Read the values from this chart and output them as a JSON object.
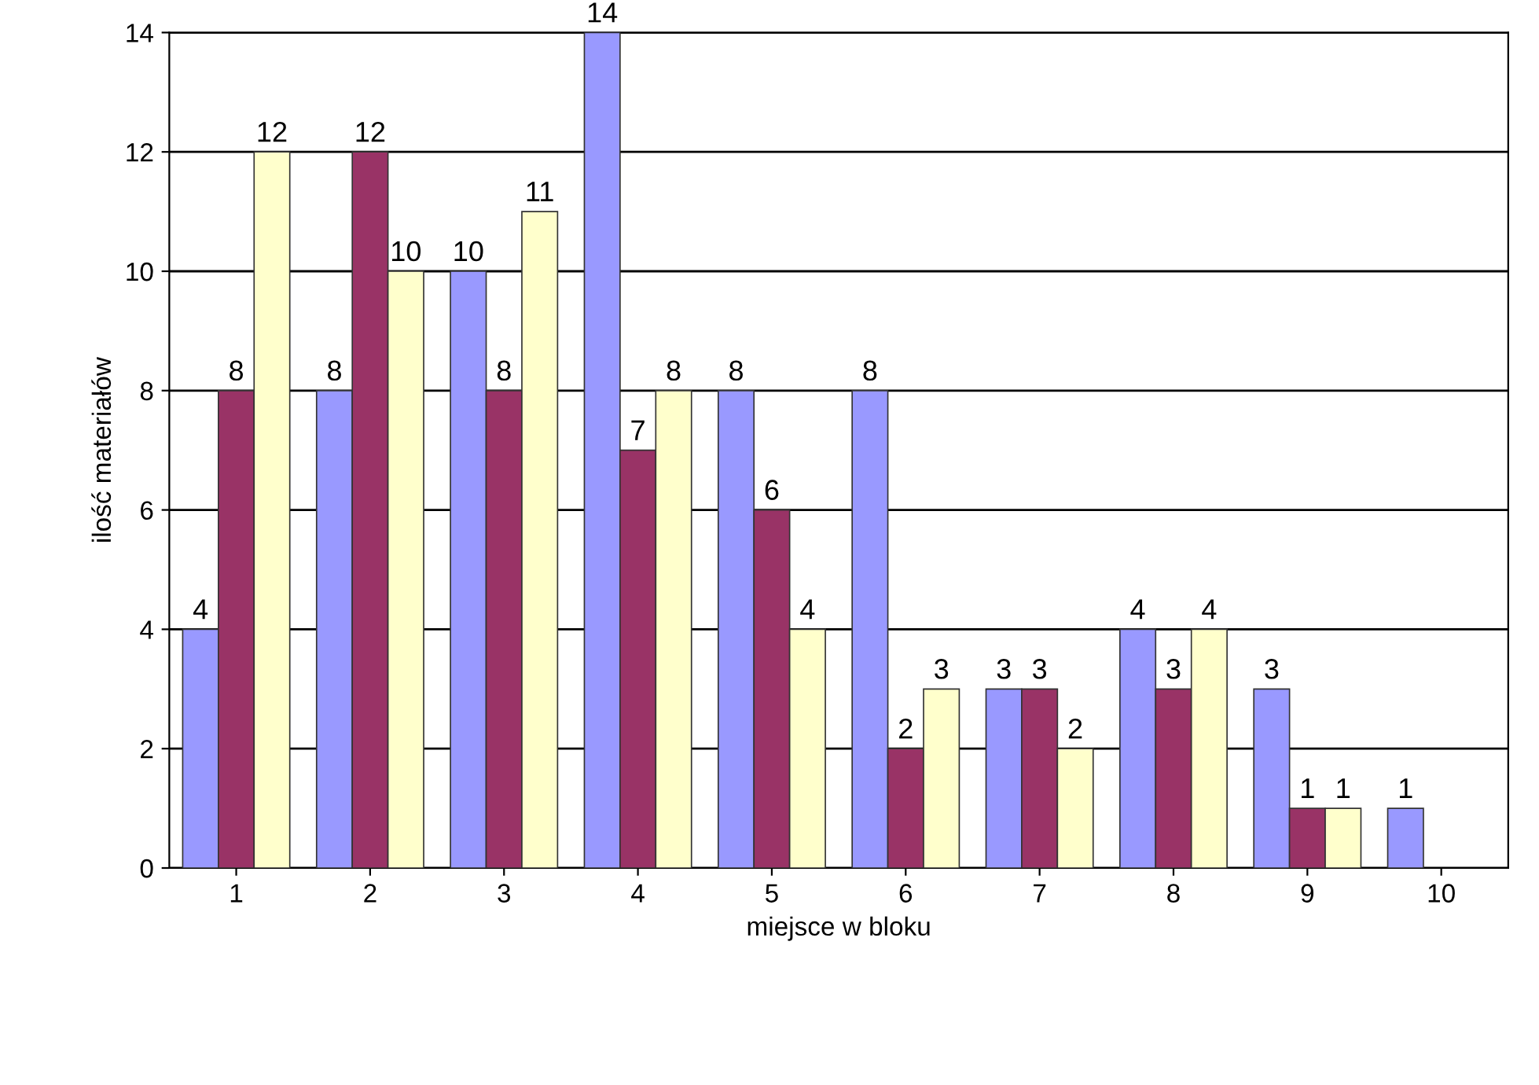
{
  "chart_data": {
    "type": "bar",
    "xlabel": "miejsce w bloku",
    "ylabel": "ilość materiałów",
    "categories": [
      "1",
      "2",
      "3",
      "4",
      "5",
      "6",
      "7",
      "8",
      "9",
      "10"
    ],
    "series": [
      {
        "color": "#9999ff",
        "values": [
          4,
          8,
          10,
          14,
          8,
          8,
          3,
          4,
          3,
          1
        ]
      },
      {
        "color": "#993366",
        "values": [
          8,
          12,
          8,
          7,
          6,
          2,
          3,
          3,
          1,
          null
        ]
      },
      {
        "color": "#ffffcc",
        "values": [
          12,
          10,
          11,
          8,
          4,
          3,
          2,
          4,
          1,
          null
        ]
      }
    ],
    "ylim": [
      0,
      14
    ],
    "yticks": [
      0,
      2,
      4,
      6,
      8,
      10,
      12,
      14
    ],
    "grid": "y",
    "data_labels": true,
    "legend": false
  }
}
